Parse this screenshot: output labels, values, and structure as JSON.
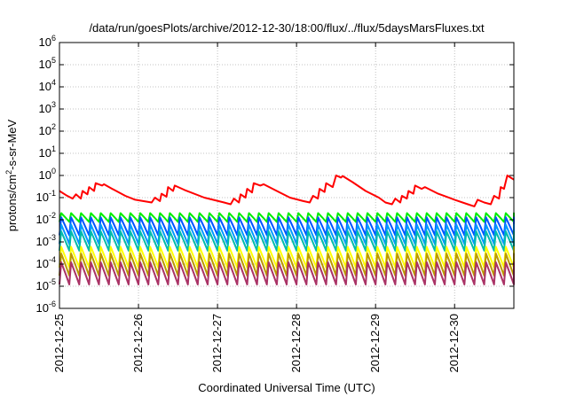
{
  "chart_data": {
    "type": "line",
    "title": "/data/run/goesPlots/archive/2012-12-30/18:00/flux/../flux/5daysMarsFluxes.txt",
    "xlabel": "Coordinated Universal Time (UTC)",
    "ylabel": {
      "prefix": "protons/cm",
      "sup": "2",
      "suffix": "-s-sr-MeV"
    },
    "xlim": [
      "2012-12-25",
      "2012-12-30 18:00"
    ],
    "ylim": [
      1e-06,
      1000000.0
    ],
    "y_scale": "log",
    "grid": true,
    "legend": "none",
    "x_ticks": [
      "2012-12-25",
      "2012-12-26",
      "2012-12-27",
      "2012-12-28",
      "2012-12-29",
      "2012-12-30"
    ],
    "y_ticks": [
      {
        "base": "10",
        "exp": "-6"
      },
      {
        "base": "10",
        "exp": "-5"
      },
      {
        "base": "10",
        "exp": "-4"
      },
      {
        "base": "10",
        "exp": "-3"
      },
      {
        "base": "10",
        "exp": "-2"
      },
      {
        "base": "10",
        "exp": "-1"
      },
      {
        "base": "10",
        "exp": "0"
      },
      {
        "base": "10",
        "exp": "1"
      },
      {
        "base": "10",
        "exp": "2"
      },
      {
        "base": "10",
        "exp": "3"
      },
      {
        "base": "10",
        "exp": "4"
      },
      {
        "base": "10",
        "exp": "5"
      },
      {
        "base": "10",
        "exp": "6"
      }
    ],
    "series": [
      {
        "color": "#ff0000",
        "points": [
          [
            "2012-12-25 00:00",
            0.2
          ],
          [
            "2012-12-25 02:00",
            0.13
          ],
          [
            "2012-12-25 04:00",
            0.09
          ],
          [
            "2012-12-25 05:00",
            0.14
          ],
          [
            "2012-12-25 06:30",
            0.09
          ],
          [
            "2012-12-25 07:00",
            0.2
          ],
          [
            "2012-12-25 08:30",
            0.14
          ],
          [
            "2012-12-25 09:00",
            0.3
          ],
          [
            "2012-12-25 10:30",
            0.2
          ],
          [
            "2012-12-25 11:00",
            0.45
          ],
          [
            "2012-12-25 13:00",
            0.35
          ],
          [
            "2012-12-25 13:30",
            0.4
          ],
          [
            "2012-12-25 16:00",
            0.25
          ],
          [
            "2012-12-25 20:00",
            0.12
          ],
          [
            "2012-12-25 23:00",
            0.08
          ],
          [
            "2012-12-26 04:00",
            0.06
          ],
          [
            "2012-12-26 05:00",
            0.1
          ],
          [
            "2012-12-26 06:30",
            0.07
          ],
          [
            "2012-12-26 07:00",
            0.15
          ],
          [
            "2012-12-26 08:30",
            0.11
          ],
          [
            "2012-12-26 09:00",
            0.3
          ],
          [
            "2012-12-26 10:30",
            0.2
          ],
          [
            "2012-12-26 11:00",
            0.35
          ],
          [
            "2012-12-26 14:00",
            0.22
          ],
          [
            "2012-12-26 20:00",
            0.1
          ],
          [
            "2012-12-27 02:00",
            0.06
          ],
          [
            "2012-12-27 04:00",
            0.05
          ],
          [
            "2012-12-27 05:00",
            0.09
          ],
          [
            "2012-12-27 06:30",
            0.06
          ],
          [
            "2012-12-27 07:00",
            0.14
          ],
          [
            "2012-12-27 08:30",
            0.1
          ],
          [
            "2012-12-27 09:00",
            0.25
          ],
          [
            "2012-12-27 10:30",
            0.17
          ],
          [
            "2012-12-27 11:00",
            0.45
          ],
          [
            "2012-12-27 13:00",
            0.35
          ],
          [
            "2012-12-27 14:00",
            0.4
          ],
          [
            "2012-12-27 18:00",
            0.2
          ],
          [
            "2012-12-27 22:00",
            0.1
          ],
          [
            "2012-12-28 02:00",
            0.07
          ],
          [
            "2012-12-28 04:00",
            0.06
          ],
          [
            "2012-12-28 05:00",
            0.12
          ],
          [
            "2012-12-28 06:30",
            0.09
          ],
          [
            "2012-12-28 07:00",
            0.25
          ],
          [
            "2012-12-28 08:30",
            0.18
          ],
          [
            "2012-12-28 09:00",
            0.45
          ],
          [
            "2012-12-28 11:00",
            0.3
          ],
          [
            "2012-12-28 12:00",
            1.0
          ],
          [
            "2012-12-28 13:30",
            0.8
          ],
          [
            "2012-12-28 14:00",
            0.95
          ],
          [
            "2012-12-28 17:00",
            0.5
          ],
          [
            "2012-12-28 21:00",
            0.2
          ],
          [
            "2012-12-29 01:00",
            0.1
          ],
          [
            "2012-12-29 03:00",
            0.06
          ],
          [
            "2012-12-29 05:00",
            0.05
          ],
          [
            "2012-12-29 06:00",
            0.09
          ],
          [
            "2012-12-29 07:30",
            0.06
          ],
          [
            "2012-12-29 08:00",
            0.12
          ],
          [
            "2012-12-29 09:30",
            0.09
          ],
          [
            "2012-12-29 10:00",
            0.2
          ],
          [
            "2012-12-29 11:30",
            0.15
          ],
          [
            "2012-12-29 12:00",
            0.35
          ],
          [
            "2012-12-29 14:00",
            0.25
          ],
          [
            "2012-12-29 15:00",
            0.3
          ],
          [
            "2012-12-29 19:00",
            0.15
          ],
          [
            "2012-12-30 00:00",
            0.08
          ],
          [
            "2012-12-30 04:00",
            0.05
          ],
          [
            "2012-12-30 06:00",
            0.04
          ],
          [
            "2012-12-30 07:00",
            0.08
          ],
          [
            "2012-12-30 09:00",
            0.06
          ],
          [
            "2012-12-30 11:00",
            0.05
          ],
          [
            "2012-12-30 12:00",
            0.12
          ],
          [
            "2012-12-30 13:30",
            0.09
          ],
          [
            "2012-12-30 14:00",
            0.3
          ],
          [
            "2012-12-30 15:00",
            0.25
          ],
          [
            "2012-12-30 16:00",
            1.0
          ],
          [
            "2012-12-30 17:00",
            0.8
          ],
          [
            "2012-12-30 18:00",
            0.65
          ]
        ]
      },
      {
        "color": "#00ee00",
        "sawtooth": {
          "min": 0.008,
          "max": 0.02
        }
      },
      {
        "color": "#0055ff",
        "sawtooth": {
          "min": 0.002,
          "max": 0.013
        }
      },
      {
        "color": "#0099ff",
        "sawtooth": {
          "min": 0.0008,
          "max": 0.006
        }
      },
      {
        "color": "#00bbaa",
        "sawtooth": {
          "min": 0.0004,
          "max": 0.003
        }
      },
      {
        "color": "#ffff00",
        "sawtooth": {
          "min": 7e-05,
          "max": 0.0006
        }
      },
      {
        "color": "#bb9900",
        "sawtooth": {
          "min": 3e-05,
          "max": 0.0003
        }
      },
      {
        "color": "#aa3366",
        "sawtooth": {
          "min": 1.2e-05,
          "max": 0.00012
        }
      }
    ],
    "sawtooth_period_hours": 3
  }
}
